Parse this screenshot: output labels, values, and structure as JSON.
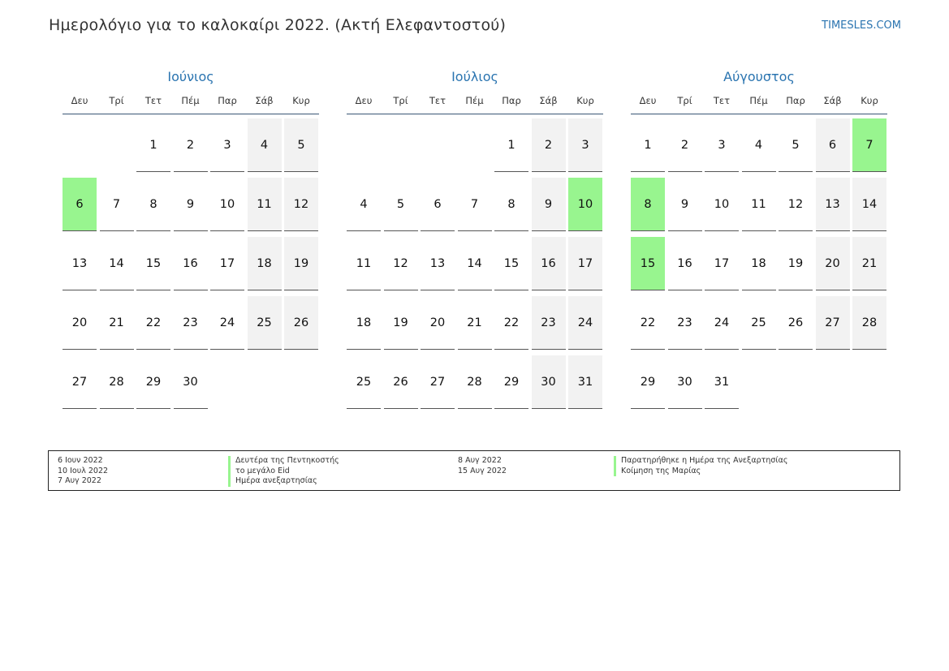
{
  "header": {
    "title": "Ημερολόγιο για το καλοκαίρι 2022. (Ακτή Ελεφαντοστού)",
    "site": "TIMESLES.COM"
  },
  "colors": {
    "accent": "#2a74b0",
    "holiday": "#98f58f",
    "weekend": "#f2f2f2",
    "rule": "#3a5675"
  },
  "weekdays": [
    "Δευ",
    "Τρί",
    "Τετ",
    "Πέμ",
    "Παρ",
    "Σάβ",
    "Κυρ"
  ],
  "months": [
    {
      "name": "Ιούνιος",
      "first_weekday": 2,
      "days": 30,
      "holidays": [
        6
      ]
    },
    {
      "name": "Ιούλιος",
      "first_weekday": 4,
      "days": 31,
      "holidays": [
        10
      ]
    },
    {
      "name": "Αύγουστος",
      "first_weekday": 0,
      "days": 31,
      "holidays": [
        7,
        8,
        15
      ]
    }
  ],
  "legend": {
    "left_dates": [
      "6 Ιουν 2022",
      "10 Ιουλ 2022",
      "7 Αυγ 2022"
    ],
    "left_names": [
      "Δευτέρα της Πεντηκοστής",
      "το μεγάλο Eid",
      "Ημέρα ανεξαρτησίας"
    ],
    "right_dates": [
      "8 Αυγ 2022",
      "15 Αυγ 2022"
    ],
    "right_names": [
      "Παρατηρήθηκε η Ημέρα της Ανεξαρτησίας",
      "Κοίμηση της Μαρίας"
    ]
  }
}
